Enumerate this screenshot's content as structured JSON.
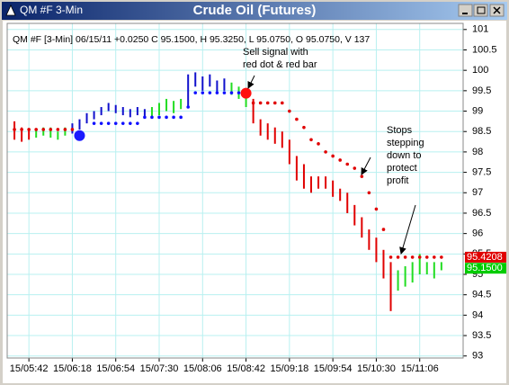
{
  "window": {
    "title": "QM #F 3-Min"
  },
  "chart_data": {
    "type": "ohlc",
    "title": "Crude Oil (Futures)",
    "subtitle": "QM #F [3-Min] 06/15/11 +0.0250 C 95.1500, H 95.3250, L 95.0750, O 95.0750, V 137",
    "xlim": [
      -2,
      124
    ],
    "xticks": [
      {
        "value": 4,
        "label": "15/05:42"
      },
      {
        "value": 16,
        "label": "15/06:18"
      },
      {
        "value": 28,
        "label": "15/06:54"
      },
      {
        "value": 40,
        "label": "15/07:30"
      },
      {
        "value": 52,
        "label": "15/08:06"
      },
      {
        "value": 64,
        "label": "15/08:42"
      },
      {
        "value": 76,
        "label": "15/09:18"
      },
      {
        "value": 88,
        "label": "15/09:54"
      },
      {
        "value": 100,
        "label": "15/10:30"
      },
      {
        "value": 112,
        "label": "15/11:06"
      }
    ],
    "ylim": [
      92.95,
      101.15
    ],
    "yticks": [
      93,
      93.5,
      94,
      94.5,
      95,
      95.5,
      96,
      96.5,
      97,
      97.5,
      98,
      98.5,
      99,
      99.5,
      100,
      100.5,
      101
    ],
    "grid": true,
    "series": [
      {
        "color": "#e00000",
        "x": [
          0,
          2,
          4,
          66,
          68,
          70,
          72,
          74,
          76,
          78,
          80,
          82,
          84,
          86,
          88,
          90,
          92,
          94,
          96,
          98,
          100,
          102,
          104
        ],
        "high": [
          98.75,
          98.6,
          98.55,
          99.3,
          98.8,
          98.7,
          98.6,
          98.5,
          98.3,
          97.9,
          97.7,
          97.4,
          97.4,
          97.4,
          97.3,
          97.1,
          97.0,
          96.7,
          96.4,
          96.1,
          95.9,
          95.6,
          95.3
        ],
        "low": [
          98.3,
          98.25,
          98.3,
          98.7,
          98.4,
          98.3,
          98.2,
          98.1,
          97.7,
          97.3,
          97.1,
          97.0,
          97.1,
          97.1,
          96.9,
          96.8,
          96.5,
          96.2,
          95.9,
          95.6,
          95.3,
          94.9,
          94.1
        ]
      },
      {
        "color": "#22dd22",
        "x": [
          6,
          8,
          10,
          12,
          14,
          38,
          40,
          42,
          44,
          46,
          60,
          62,
          64,
          106,
          108,
          110,
          112,
          114,
          116,
          118
        ],
        "high": [
          98.55,
          98.6,
          98.6,
          98.5,
          98.6,
          99.1,
          99.2,
          99.3,
          99.25,
          99.3,
          99.7,
          99.6,
          99.5,
          95.1,
          95.2,
          95.3,
          95.5,
          95.3,
          95.3,
          95.3
        ],
        "low": [
          98.35,
          98.4,
          98.35,
          98.3,
          98.4,
          98.85,
          98.9,
          99.0,
          98.95,
          99.05,
          99.4,
          99.3,
          99.1,
          94.6,
          94.7,
          94.8,
          95.0,
          95.0,
          94.9,
          95.1
        ]
      },
      {
        "color": "#1010cc",
        "x": [
          16,
          18,
          20,
          22,
          24,
          26,
          28,
          30,
          32,
          34,
          36,
          48,
          50,
          52,
          54,
          56,
          58
        ],
        "high": [
          98.7,
          98.8,
          98.95,
          99.0,
          99.1,
          99.2,
          99.15,
          99.1,
          99.05,
          99.1,
          99.05,
          99.9,
          99.95,
          99.85,
          99.9,
          99.75,
          99.8
        ],
        "low": [
          98.45,
          98.55,
          98.7,
          98.8,
          98.9,
          99.0,
          98.95,
          98.9,
          98.85,
          98.9,
          98.85,
          99.1,
          99.6,
          99.5,
          99.6,
          99.45,
          99.5
        ]
      }
    ],
    "stops": [
      {
        "color": "#e00000",
        "x": [
          0,
          2,
          4,
          6,
          8,
          10,
          12,
          14,
          16,
          66,
          68,
          70,
          72,
          74,
          76,
          78,
          80,
          82,
          84,
          86,
          88,
          90,
          92,
          94,
          96,
          98,
          100,
          102,
          104,
          106,
          108,
          110,
          112,
          114,
          116,
          118
        ],
        "values": [
          98.55,
          98.55,
          98.55,
          98.55,
          98.55,
          98.55,
          98.55,
          98.55,
          98.55,
          99.2,
          99.2,
          99.2,
          99.2,
          99.2,
          99.0,
          98.8,
          98.6,
          98.3,
          98.2,
          98.0,
          97.9,
          97.8,
          97.7,
          97.6,
          97.4,
          97.0,
          96.6,
          96.1,
          95.4208,
          95.4208,
          95.4208,
          95.4208,
          95.4208,
          95.4208,
          95.4208,
          95.4208
        ]
      },
      {
        "color": "#1010ff",
        "x": [
          22,
          24,
          26,
          28,
          30,
          32,
          34,
          36,
          38,
          40,
          42,
          44,
          46,
          48,
          50,
          52,
          54,
          56,
          58,
          60,
          62
        ],
        "values": [
          98.7,
          98.7,
          98.7,
          98.7,
          98.7,
          98.7,
          98.7,
          98.85,
          98.85,
          98.85,
          98.85,
          98.85,
          98.85,
          99.1,
          99.45,
          99.45,
          99.45,
          99.45,
          99.45,
          99.45,
          99.45
        ]
      }
    ],
    "signals": [
      {
        "color": "#1a1aff",
        "x": 18,
        "value": 98.4
      },
      {
        "color": "#ff1010",
        "x": 64,
        "value": 99.44
      }
    ],
    "price_tags": [
      {
        "value": 95.4208,
        "label": "95.4208",
        "color": "#e00000"
      },
      {
        "value": 95.15,
        "label": "95.1500",
        "color": "#00cc00"
      }
    ],
    "annotations": [
      {
        "lines": [
          "Sell signal with",
          "red dot & red bar"
        ]
      },
      {
        "lines": [
          "Stops",
          "stepping",
          "down to",
          "protect",
          "profit"
        ]
      }
    ]
  }
}
